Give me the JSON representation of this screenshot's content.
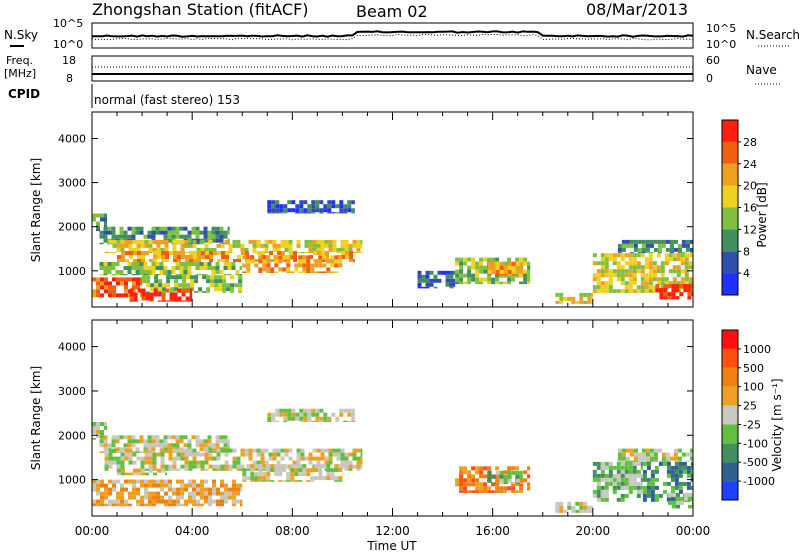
{
  "header": {
    "title": "Zhongshan Station (fitACF)",
    "beam": "Beam 02",
    "date": "08/Mar/2013"
  },
  "noise_panel": {
    "left_label": "N.Sky",
    "right_label": "N.Search",
    "ytick_labels": [
      "10^5",
      "10^0"
    ],
    "right_ytick_labels": [
      "10^5",
      "10^0"
    ]
  },
  "freq_panel": {
    "left_label": "Freq.",
    "left_unit": "[MHz]",
    "right_label": "Nave",
    "yticks_left": [
      "18",
      "8"
    ],
    "yticks_right": [
      "60",
      "0"
    ]
  },
  "cpid": {
    "label": "CPID",
    "value": "normal (fast stereo) 153"
  },
  "chart_data": [
    {
      "type": "heatmap",
      "name": "power",
      "ylabel": "Slant Range [km]",
      "xlabel": "Time UT",
      "ylim": [
        180,
        4600
      ],
      "yticks": [
        1000,
        2000,
        3000,
        4000
      ],
      "xticks": [
        "00:00",
        "04:00",
        "08:00",
        "12:00",
        "16:00",
        "20:00",
        "00:00"
      ],
      "colorbar": {
        "label": "Power [dB]",
        "ticks": [
          "28",
          "24",
          "20",
          "16",
          "12",
          "8",
          "4"
        ],
        "colors": [
          "#2030ff",
          "#3050b0",
          "#409060",
          "#80c040",
          "#f0d020",
          "#f0a020",
          "#f06010",
          "#ff2010"
        ]
      },
      "regions": [
        {
          "t0": 0.0,
          "t1": 0.6,
          "r0": 1900,
          "r1": 2300,
          "level": 2
        },
        {
          "t0": 0.3,
          "t1": 5.5,
          "r0": 1600,
          "r1": 2000,
          "level": 2
        },
        {
          "t0": 0.5,
          "t1": 10.8,
          "r0": 1400,
          "r1": 1700,
          "level": 4
        },
        {
          "t0": 1.0,
          "t1": 10.5,
          "r0": 1200,
          "r1": 1450,
          "level": 5
        },
        {
          "t0": 0.3,
          "t1": 6.0,
          "r0": 900,
          "r1": 1200,
          "level": 3
        },
        {
          "t0": 6.0,
          "t1": 10.0,
          "r0": 950,
          "r1": 1350,
          "level": 5
        },
        {
          "t0": 0.0,
          "t1": 2.0,
          "r0": 400,
          "r1": 850,
          "level": 6
        },
        {
          "t0": 2.0,
          "t1": 6.0,
          "r0": 500,
          "r1": 900,
          "level": 3
        },
        {
          "t0": 1.5,
          "t1": 4.0,
          "r0": 300,
          "r1": 600,
          "level": 7
        },
        {
          "t0": 7.0,
          "t1": 10.5,
          "r0": 2300,
          "r1": 2600,
          "level": 1
        },
        {
          "t0": 14.5,
          "t1": 17.5,
          "r0": 700,
          "r1": 1300,
          "level": 3
        },
        {
          "t0": 15.8,
          "t1": 17.2,
          "r0": 900,
          "r1": 1200,
          "level": 5
        },
        {
          "t0": 18.5,
          "t1": 20.0,
          "r0": 250,
          "r1": 500,
          "level": 4
        },
        {
          "t0": 20.0,
          "t1": 24.0,
          "r0": 500,
          "r1": 1400,
          "level": 4
        },
        {
          "t0": 22.5,
          "t1": 24.0,
          "r0": 350,
          "r1": 700,
          "level": 7
        },
        {
          "t0": 21.0,
          "t1": 24.0,
          "r0": 1400,
          "r1": 1700,
          "level": 2
        },
        {
          "t0": 13.0,
          "t1": 14.5,
          "r0": 600,
          "r1": 1000,
          "level": 1
        }
      ]
    },
    {
      "type": "heatmap",
      "name": "velocity",
      "ylabel": "Slant Range [km]",
      "xlabel": "Time UT",
      "ylim": [
        180,
        4600
      ],
      "yticks": [
        1000,
        2000,
        3000,
        4000
      ],
      "xticks": [
        "00:00",
        "04:00",
        "08:00",
        "12:00",
        "16:00",
        "20:00",
        "00:00"
      ],
      "colorbar": {
        "label": "Velocity [m s⁻¹]",
        "ticks": [
          "1000",
          "500",
          "100",
          "25",
          "-25",
          "-100",
          "-500",
          "-1000"
        ],
        "colors": [
          "#2040ff",
          "#306090",
          "#409060",
          "#60c040",
          "#c8c8c0",
          "#f0a020",
          "#f08010",
          "#ff5010",
          "#ff1010"
        ]
      },
      "regions": [
        {
          "t0": 0.0,
          "t1": 0.6,
          "r0": 1900,
          "r1": 2300,
          "level": 4
        },
        {
          "t0": 0.3,
          "t1": 5.5,
          "r0": 1600,
          "r1": 2000,
          "level": 4
        },
        {
          "t0": 0.5,
          "t1": 10.8,
          "r0": 1200,
          "r1": 1700,
          "level": 4
        },
        {
          "t0": 6.0,
          "t1": 10.0,
          "r0": 950,
          "r1": 1350,
          "level": 4
        },
        {
          "t0": 0.0,
          "t1": 6.0,
          "r0": 400,
          "r1": 1000,
          "level": 5
        },
        {
          "t0": 1.0,
          "t1": 3.0,
          "r0": 1100,
          "r1": 1250,
          "level": 4
        },
        {
          "t0": 7.0,
          "t1": 10.5,
          "r0": 2300,
          "r1": 2600,
          "level": 4
        },
        {
          "t0": 14.5,
          "t1": 17.5,
          "r0": 700,
          "r1": 1300,
          "level": 6
        },
        {
          "t0": 15.8,
          "t1": 17.2,
          "r0": 900,
          "r1": 1200,
          "level": 3
        },
        {
          "t0": 18.5,
          "t1": 20.0,
          "r0": 250,
          "r1": 500,
          "level": 4
        },
        {
          "t0": 20.0,
          "t1": 22.0,
          "r0": 500,
          "r1": 1400,
          "level": 3
        },
        {
          "t0": 22.0,
          "t1": 24.0,
          "r0": 500,
          "r1": 1400,
          "level": 2
        },
        {
          "t0": 23.0,
          "t1": 24.0,
          "r0": 350,
          "r1": 700,
          "level": 3
        },
        {
          "t0": 21.0,
          "t1": 24.0,
          "r0": 1400,
          "r1": 1700,
          "level": 4
        }
      ]
    }
  ]
}
